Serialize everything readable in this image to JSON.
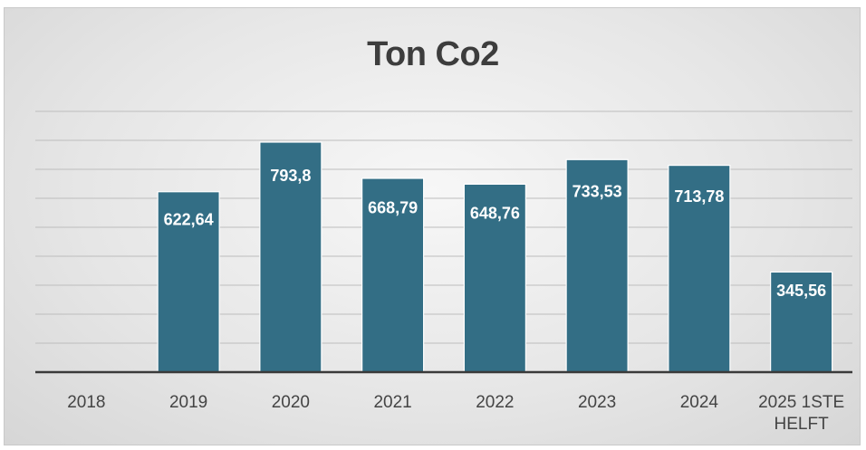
{
  "chart_data": {
    "type": "bar",
    "title": "Ton Co2",
    "categories": [
      "2018",
      "2019",
      "2020",
      "2021",
      "2022",
      "2023",
      "2024",
      "2025 1STE HELFT"
    ],
    "category_label_lines": [
      [
        "2018"
      ],
      [
        "2019"
      ],
      [
        "2020"
      ],
      [
        "2021"
      ],
      [
        "2022"
      ],
      [
        "2023"
      ],
      [
        "2024"
      ],
      [
        "2025 1STE",
        "HELFT"
      ]
    ],
    "values": [
      null,
      622.64,
      793.8,
      668.79,
      648.76,
      733.53,
      713.78,
      345.56
    ],
    "data_labels": [
      "",
      "622,64",
      "793,8",
      "668,79",
      "648,76",
      "733,53",
      "713,78",
      "345,56"
    ],
    "xlabel": "",
    "ylabel": "",
    "ylim": [
      0,
      900
    ],
    "y_gridline_step": 100,
    "y_tick_labels_shown": false,
    "grid": true,
    "legend": "none",
    "colors": {
      "bar": "#336e85",
      "bar_border": "#ffffff",
      "gridline": "#bdbdbd",
      "axis": "#3a3a3a",
      "data_label": "#ffffff",
      "category_label": "#444444"
    }
  }
}
